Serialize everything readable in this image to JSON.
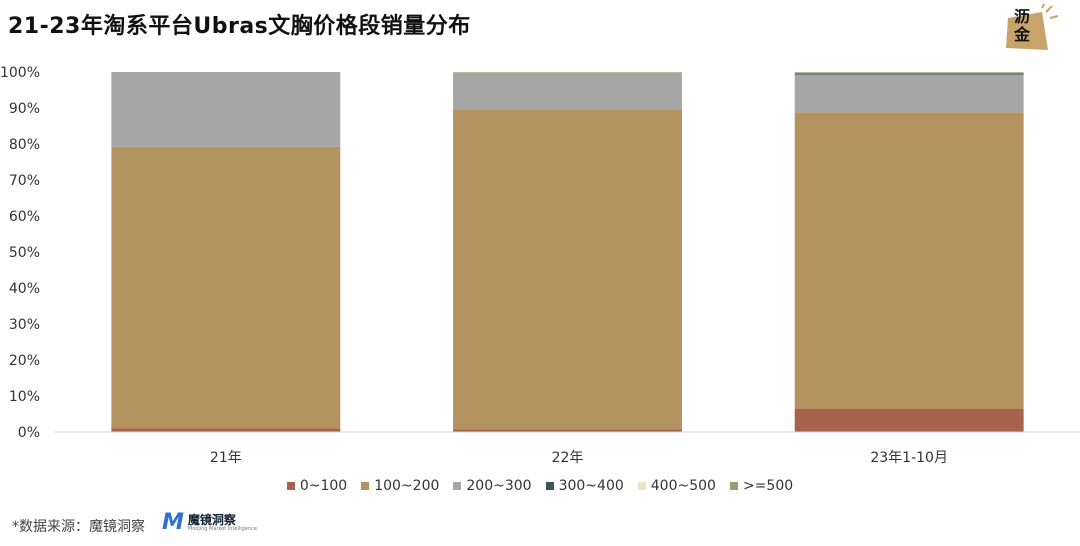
{
  "title": "21-23年淘系平台Ubras文胸价格段销量分布",
  "logo": {
    "line1": "沥",
    "line2": "金"
  },
  "source_label": "*数据来源：魔镜洞察",
  "brand": {
    "mark": "M",
    "name": "魔镜洞察",
    "sub": "Moojing Market Intelligence"
  },
  "colors": {
    "0~100": "#a8634f",
    "100~200": "#b3935f",
    "200~300": "#a6a6a6",
    "300~400": "#3e5561",
    "400~500": "#f0e1c8",
    ">=500": "#9c9c78"
  },
  "chart_data": {
    "type": "bar",
    "stacked": true,
    "categories": [
      "21年",
      "22年",
      "23年1-10月"
    ],
    "series": [
      {
        "name": "0~100",
        "values": [
          1.0,
          0.7,
          6.5
        ]
      },
      {
        "name": "100~200",
        "values": [
          78.2,
          88.9,
          82.3
        ]
      },
      {
        "name": "200~300",
        "values": [
          20.8,
          10.2,
          10.5
        ]
      },
      {
        "name": "300~400",
        "values": [
          0,
          0,
          0.4
        ]
      },
      {
        "name": "400~500",
        "values": [
          0,
          0.1,
          0.1
        ]
      },
      {
        "name": ">=500",
        "values": [
          0,
          0.1,
          0.2
        ]
      }
    ],
    "yticks": [
      "0%",
      "10%",
      "20%",
      "30%",
      "40%",
      "50%",
      "60%",
      "70%",
      "80%",
      "90%",
      "100%"
    ],
    "ylim": [
      0,
      100
    ],
    "legend_position": "bottom"
  }
}
